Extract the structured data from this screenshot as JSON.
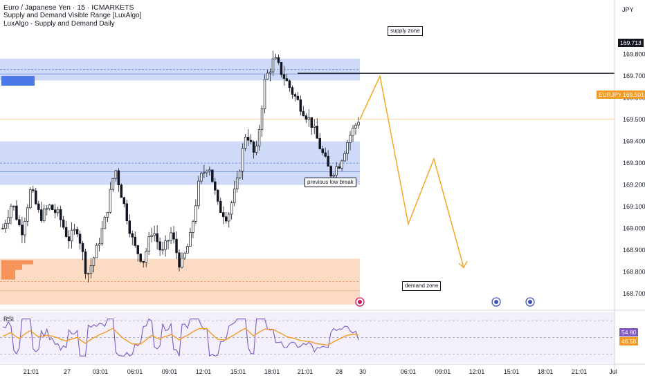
{
  "title": "Euro / Japanese Yen · 15 · ICMARKETS",
  "indicators": [
    "Supply and Demand Visible Range [LuxAlgo]",
    "LuxAlgo - Supply and Demand Daily"
  ],
  "currency": "JPY",
  "rsi_label": "RSI",
  "annotations": {
    "supply": "supply zone",
    "previous_low": "previous low break",
    "demand": "demand zone"
  },
  "price_tags": {
    "level_value": "169.713",
    "symbol": "EURJPY",
    "last_value": "169.501",
    "rsi_value": "54.80",
    "rsi_ma_value": "46.58"
  },
  "colors": {
    "supply_zone": "#c5d4f7",
    "demand_zone": "#fbd7bc",
    "projection": "#f5a623",
    "rsi": "#7e57c2",
    "rsi_ma": "#f59b23",
    "last_price": "#f59b23"
  },
  "chart_data": {
    "type": "candlestick",
    "y_range": [
      168.63,
      170.05
    ],
    "y_ticks": [
      "169.800",
      "169.700",
      "169.600",
      "169.500",
      "169.400",
      "169.300",
      "169.200",
      "169.100",
      "169.000",
      "168.900",
      "168.800",
      "168.700"
    ],
    "y_tick_values": [
      169.8,
      169.7,
      169.6,
      169.5,
      169.4,
      169.3,
      169.2,
      169.1,
      169.0,
      168.9,
      168.8,
      168.7
    ],
    "x_ticks": [
      "21:01",
      "27",
      "03:01",
      "06:01",
      "09:01",
      "12:01",
      "15:01",
      "18:01",
      "21:01",
      "28",
      "30",
      "06:01",
      "09:01",
      "12:01",
      "15:01",
      "18:01",
      "21:01",
      "Jul"
    ],
    "close_path": [
      169.0,
      169.12,
      168.98,
      169.18,
      169.05,
      169.1,
      169.06,
      168.95,
      169.0,
      168.78,
      168.9,
      169.05,
      169.28,
      169.1,
      168.92,
      168.85,
      169.0,
      168.88,
      168.98,
      168.82,
      168.95,
      169.22,
      169.3,
      169.1,
      169.05,
      169.2,
      169.45,
      169.32,
      169.68,
      169.78,
      169.7,
      169.62,
      169.55,
      169.48,
      169.36,
      169.25,
      169.3,
      169.42,
      169.5
    ],
    "last_price": 169.501,
    "level": 169.713,
    "supply_zone": [
      169.68,
      169.78
    ],
    "mid_zone": [
      169.2,
      169.4
    ],
    "demand_zone": [
      168.65,
      168.86
    ],
    "projection": [
      [
        169.501,
        0
      ],
      [
        169.7,
        1
      ],
      [
        169.02,
        2
      ],
      [
        169.32,
        3
      ],
      [
        168.82,
        4
      ]
    ],
    "rsi": {
      "range": [
        20,
        80
      ],
      "levels": [
        70,
        50,
        30
      ],
      "last": 54.8,
      "ma_last": 46.58
    }
  }
}
